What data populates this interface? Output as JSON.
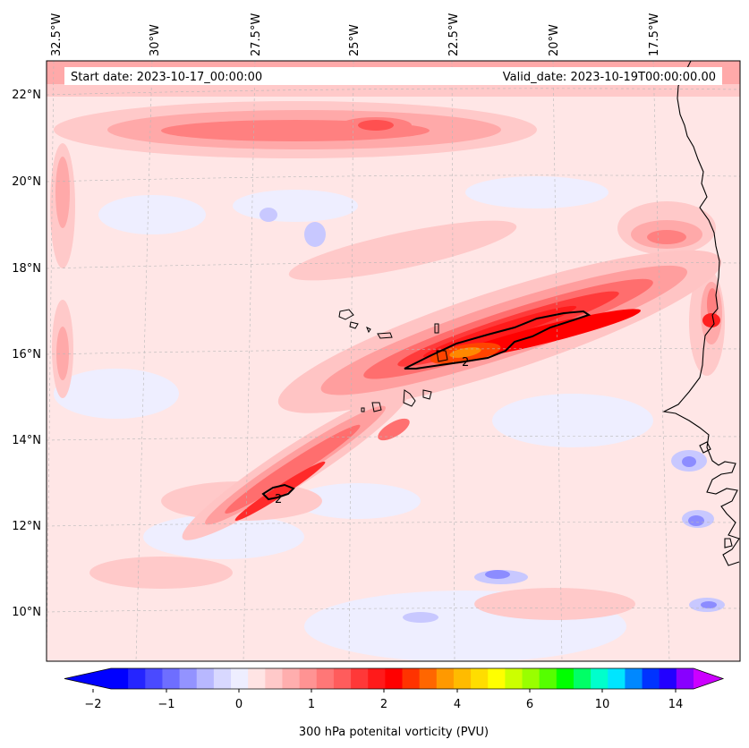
{
  "map": {
    "start_date_text": "Start date: 2023-10-17_00:00:00",
    "valid_date_text": "Valid_date: 2023-10-19T00:00:00.00",
    "lon_labels": [
      "32.5°W",
      "30°W",
      "27.5°W",
      "25°W",
      "22.5°W",
      "20°W",
      "17.5°W"
    ],
    "lat_labels": [
      "22°N",
      "20°N",
      "18°N",
      "16°N",
      "14°N",
      "12°N",
      "10°N"
    ],
    "contour_labels": [
      "2",
      "2"
    ]
  },
  "colorbar": {
    "label": "300 hPa potenital vorticity (PVU)",
    "tick_labels": [
      "−2",
      "−1",
      "0",
      "1",
      "2",
      "4",
      "6",
      "10",
      "14"
    ],
    "colors": [
      "#0000ff",
      "#2525ff",
      "#4a4aff",
      "#6e6eff",
      "#9393ff",
      "#b8b8ff",
      "#d8d8ff",
      "#eeeeff",
      "#ffe4e4",
      "#ffc9c9",
      "#ffaeae",
      "#ff9393",
      "#ff7777",
      "#ff5c5c",
      "#ff3838",
      "#ff1a1a",
      "#ff0000",
      "#ff3300",
      "#ff6600",
      "#ff9900",
      "#ffbb00",
      "#ffdd00",
      "#ffff00",
      "#ccff00",
      "#99ff00",
      "#55ff00",
      "#00ff00",
      "#00ff66",
      "#00ffcc",
      "#00e5ff",
      "#0088ff",
      "#0033ff",
      "#2200ff",
      "#8800ff"
    ],
    "under_color": "#0000ff",
    "over_color": "#cc00ff"
  }
}
